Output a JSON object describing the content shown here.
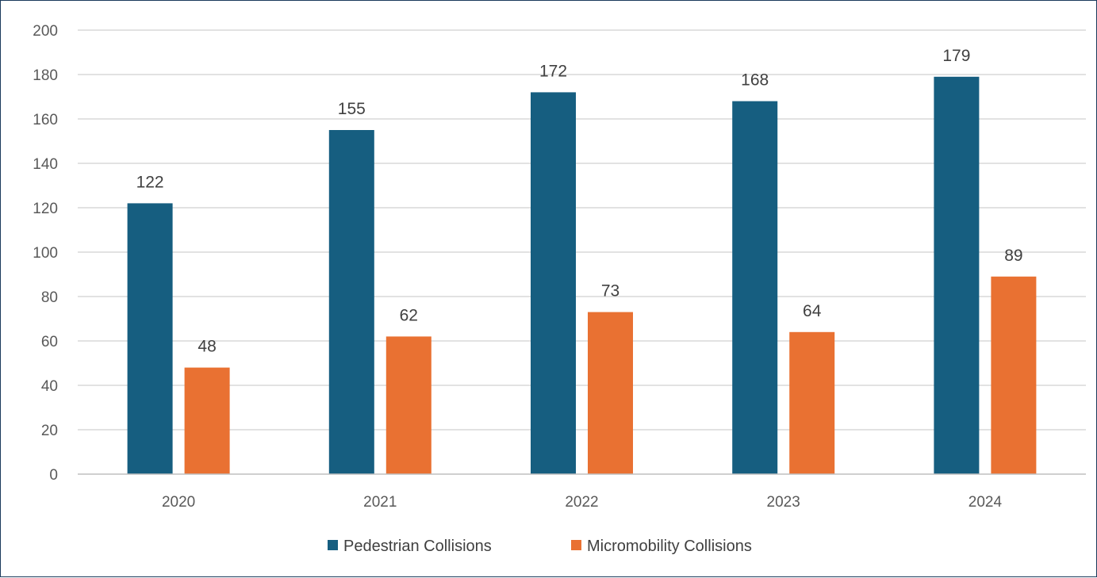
{
  "chart_data": {
    "type": "bar",
    "categories": [
      "2020",
      "2021",
      "2022",
      "2023",
      "2024"
    ],
    "series": [
      {
        "name": "Pedestrian Collisions",
        "values": [
          122,
          155,
          172,
          168,
          179
        ],
        "color": "#165e80"
      },
      {
        "name": "Micromobility Collisions",
        "values": [
          48,
          62,
          73,
          64,
          89
        ],
        "color": "#e97132"
      }
    ],
    "ylim": [
      0,
      200
    ],
    "yticks": [
      0,
      20,
      40,
      60,
      80,
      100,
      120,
      140,
      160,
      180,
      200
    ],
    "grid": true,
    "legend_position": "bottom"
  }
}
